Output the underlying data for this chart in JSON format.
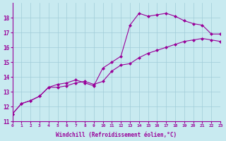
{
  "xlabel": "Windchill (Refroidissement éolien,°C)",
  "background_color": "#c8eaf0",
  "line_color": "#990099",
  "xlim": [
    0,
    23
  ],
  "ylim": [
    11,
    19
  ],
  "yticks": [
    11,
    12,
    13,
    14,
    15,
    16,
    17,
    18
  ],
  "xticks": [
    0,
    1,
    2,
    3,
    4,
    5,
    6,
    7,
    8,
    9,
    10,
    11,
    12,
    13,
    14,
    15,
    16,
    17,
    18,
    19,
    20,
    21,
    22,
    23
  ],
  "series1_x": [
    0,
    1,
    2,
    3,
    4,
    5,
    6,
    7,
    8,
    9,
    10,
    11,
    12,
    13,
    14,
    15,
    16,
    17,
    18,
    19,
    20,
    21,
    22,
    23
  ],
  "series1_y": [
    11.5,
    12.2,
    12.4,
    12.7,
    13.3,
    13.5,
    13.6,
    13.8,
    13.6,
    13.4,
    14.6,
    15.0,
    15.4,
    17.5,
    18.3,
    18.1,
    18.2,
    18.3,
    18.1,
    17.8,
    17.6,
    17.5,
    16.9,
    16.9
  ],
  "series2_x": [
    0,
    1,
    2,
    3,
    4,
    5,
    6,
    7,
    8,
    9,
    10,
    11,
    12,
    13,
    14,
    15,
    16,
    17,
    18,
    19,
    20,
    21,
    22,
    23
  ],
  "series2_y": [
    11.5,
    12.2,
    12.4,
    12.7,
    13.3,
    13.3,
    13.4,
    13.6,
    13.7,
    13.5,
    13.7,
    14.4,
    14.8,
    14.9,
    15.3,
    15.6,
    15.8,
    16.0,
    16.2,
    16.4,
    16.5,
    16.6,
    16.5,
    16.4
  ]
}
